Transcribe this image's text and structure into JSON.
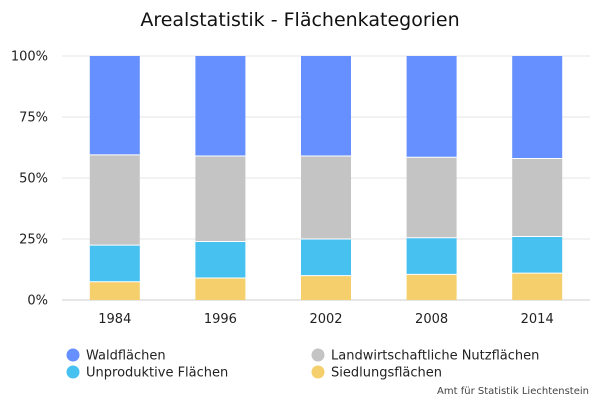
{
  "chart_data": {
    "type": "bar",
    "stacked": true,
    "normalized": true,
    "title": "Arealstatistik - Flächenkategorien",
    "categories": [
      "1984",
      "1996",
      "2002",
      "2008",
      "2014"
    ],
    "y_ticks": [
      "0%",
      "25%",
      "50%",
      "75%",
      "100%"
    ],
    "ylim": [
      0,
      100
    ],
    "grid": true,
    "legend_position": "bottom",
    "series": [
      {
        "name": "Siedlungsflächen",
        "color": "#f5cf6b",
        "values": [
          7.5,
          9,
          10,
          10.5,
          11
        ]
      },
      {
        "name": "Unproduktive Flächen",
        "color": "#47c1f0",
        "values": [
          15,
          15,
          15,
          15,
          15
        ]
      },
      {
        "name": "Landwirtschaftliche Nutzflächen",
        "color": "#c4c4c4",
        "values": [
          37,
          35,
          34,
          33,
          32
        ]
      },
      {
        "name": "Waldflächen",
        "color": "#6690ff",
        "values": [
          40.5,
          41,
          41,
          41.5,
          42
        ]
      }
    ],
    "legend_order": [
      "Waldflächen",
      "Landwirtschaftliche Nutzflächen",
      "Unproduktive Flächen",
      "Siedlungsflächen"
    ]
  },
  "credit": "Amt für Statistik Liechtenstein"
}
